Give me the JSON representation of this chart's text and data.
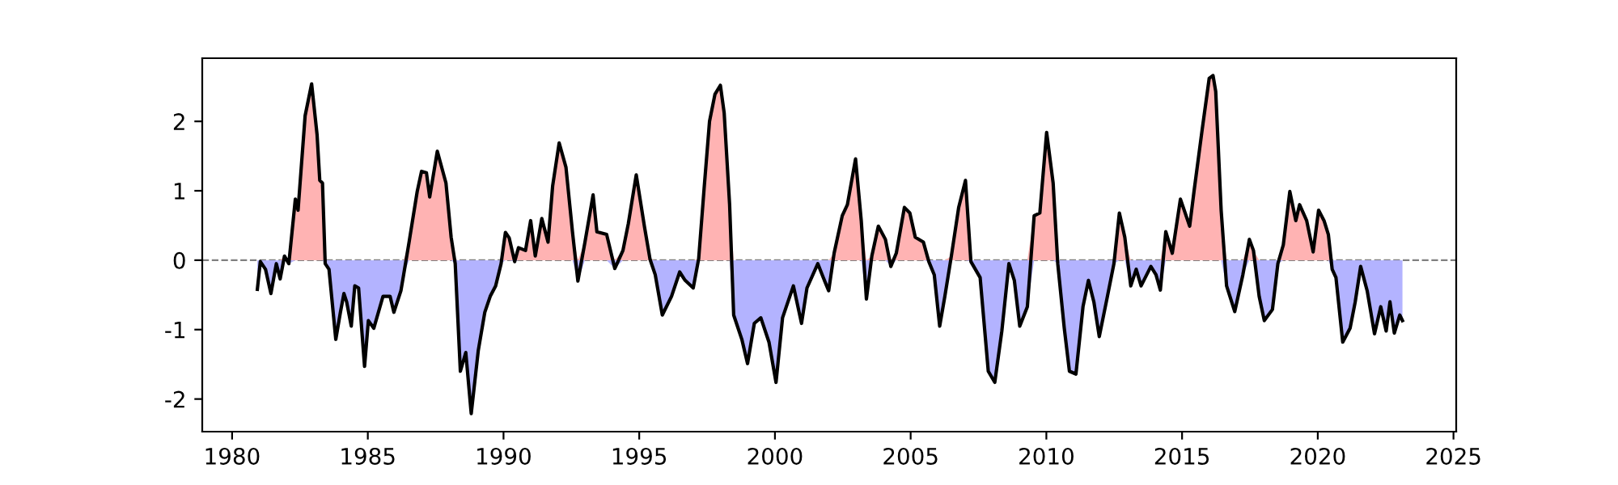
{
  "chart_data": {
    "type": "area",
    "x": [
      1980.93,
      1981.04,
      1981.23,
      1981.43,
      1981.63,
      1981.77,
      1981.93,
      1982.09,
      1982.33,
      1982.43,
      1982.69,
      1982.93,
      1983.13,
      1983.23,
      1983.33,
      1983.43,
      1983.57,
      1983.82,
      1983.99,
      1984.12,
      1984.22,
      1984.39,
      1984.52,
      1984.66,
      1984.88,
      1985.02,
      1985.22,
      1985.56,
      1985.82,
      1985.96,
      1986.22,
      1986.32,
      1986.52,
      1986.82,
      1986.98,
      1987.16,
      1987.28,
      1987.56,
      1987.88,
      1988.07,
      1988.22,
      1988.41,
      1988.61,
      1988.81,
      1989.07,
      1989.31,
      1989.51,
      1989.71,
      1989.91,
      1990.07,
      1990.21,
      1990.41,
      1990.55,
      1990.81,
      1991.0,
      1991.17,
      1991.41,
      1991.64,
      1991.81,
      1992.05,
      1992.3,
      1992.54,
      1992.74,
      1993.0,
      1993.3,
      1993.44,
      1993.8,
      1994.1,
      1994.4,
      1994.6,
      1994.89,
      1995.19,
      1995.4,
      1995.59,
      1995.85,
      1996.19,
      1996.49,
      1996.69,
      1996.99,
      1997.19,
      1997.39,
      1997.59,
      1997.79,
      1997.99,
      1998.13,
      1998.33,
      1998.48,
      1998.78,
      1998.99,
      1999.24,
      1999.48,
      1999.78,
      2000.04,
      2000.28,
      2000.68,
      2000.98,
      2001.18,
      2001.58,
      2001.78,
      2001.98,
      2002.18,
      2002.48,
      2002.67,
      2002.97,
      2003.18,
      2003.37,
      2003.57,
      2003.81,
      2004.07,
      2004.27,
      2004.47,
      2004.77,
      2004.97,
      2005.17,
      2005.47,
      2005.67,
      2005.87,
      2006.07,
      2006.26,
      2006.5,
      2006.77,
      2007.02,
      2007.22,
      2007.56,
      2007.86,
      2008.1,
      2008.36,
      2008.62,
      2008.82,
      2009.02,
      2009.3,
      2009.55,
      2009.76,
      2010.01,
      2010.25,
      2010.42,
      2010.66,
      2010.85,
      2011.09,
      2011.35,
      2011.55,
      2011.75,
      2011.95,
      2012.25,
      2012.49,
      2012.69,
      2012.89,
      2013.11,
      2013.31,
      2013.49,
      2013.85,
      2014.04,
      2014.2,
      2014.4,
      2014.64,
      2014.94,
      2015.28,
      2015.44,
      2015.74,
      2016.0,
      2016.14,
      2016.24,
      2016.44,
      2016.64,
      2016.94,
      2017.24,
      2017.48,
      2017.63,
      2017.84,
      2018.03,
      2018.33,
      2018.53,
      2018.73,
      2018.97,
      2019.19,
      2019.33,
      2019.59,
      2019.83,
      2020.03,
      2020.23,
      2020.39,
      2020.53,
      2020.67,
      2020.92,
      2021.19,
      2021.38,
      2021.58,
      2021.82,
      2022.09,
      2022.32,
      2022.52,
      2022.66,
      2022.82,
      2023.02,
      2023.12
    ],
    "series": [
      {
        "color": "#ffb3b3",
        "values": [
          0,
          0,
          0,
          0,
          0,
          0,
          0.06,
          0,
          0.88,
          0.72,
          2.08,
          2.54,
          1.81,
          1.15,
          1.11,
          0,
          0,
          0,
          0,
          0,
          0,
          0,
          0,
          0,
          0,
          0,
          0,
          0,
          0,
          0,
          0,
          0,
          0.26,
          0.99,
          1.28,
          1.26,
          0.91,
          1.57,
          1.11,
          0.33,
          0,
          0,
          0,
          0,
          0,
          0,
          0,
          0,
          0,
          0.4,
          0.32,
          0,
          0.18,
          0.14,
          0.57,
          0.06,
          0.6,
          0.26,
          1.07,
          1.69,
          1.34,
          0.41,
          0,
          0.26,
          0.94,
          0.41,
          0.37,
          0,
          0.14,
          0.53,
          1.23,
          0.49,
          0.01,
          0,
          0,
          0,
          0,
          0,
          0,
          0.02,
          1.03,
          2.0,
          2.39,
          2.52,
          2.12,
          0.8,
          0,
          0,
          0,
          0,
          0,
          0,
          0,
          0,
          0,
          0,
          0,
          0,
          0,
          0,
          0.1,
          0.64,
          0.8,
          1.46,
          0.57,
          0,
          0.06,
          0.49,
          0.3,
          0,
          0.1,
          0.76,
          0.68,
          0.33,
          0.26,
          0,
          0,
          0,
          0,
          0.06,
          0.76,
          1.15,
          0,
          0,
          0,
          0,
          0,
          0,
          0,
          0,
          0,
          0.64,
          0.68,
          1.84,
          1.11,
          0,
          0,
          0,
          0,
          0,
          0,
          0,
          0,
          0,
          0,
          0.68,
          0.33,
          0,
          0,
          0,
          0,
          0,
          0,
          0.41,
          0.1,
          0.88,
          0.49,
          0.99,
          1.88,
          2.62,
          2.66,
          2.43,
          0.72,
          0,
          0,
          0,
          0.3,
          0.14,
          0,
          0,
          0,
          0,
          0.22,
          0.99,
          0.57,
          0.8,
          0.57,
          0.12,
          0.72,
          0.57,
          0.37,
          0,
          0,
          0,
          0,
          0,
          0,
          0,
          0,
          0,
          0,
          0,
          0,
          0,
          0
        ]
      },
      {
        "color": "#b3b3ff",
        "type": "area",
        "values": [
          -0.42,
          -0.02,
          -0.13,
          -0.48,
          -0.05,
          -0.27,
          0,
          -0.05,
          0,
          0,
          0,
          0,
          0,
          0,
          0,
          -0.05,
          -0.13,
          -1.14,
          -0.75,
          -0.48,
          -0.6,
          -0.95,
          -0.37,
          -0.4,
          -1.53,
          -0.87,
          -0.98,
          -0.52,
          -0.52,
          -0.75,
          -0.44,
          -0.21,
          0,
          0,
          0,
          0,
          0,
          0,
          0,
          0,
          -0.05,
          -1.6,
          -1.33,
          -2.21,
          -1.3,
          -0.75,
          -0.52,
          -0.37,
          -0.05,
          0,
          0,
          -0.02,
          0,
          0,
          0,
          0,
          0,
          0,
          0,
          0,
          0,
          0,
          -0.3,
          0,
          0,
          0,
          0,
          -0.12,
          0,
          0,
          0,
          0,
          0,
          -0.21,
          -0.79,
          -0.52,
          -0.17,
          -0.29,
          -0.4,
          0,
          0,
          0,
          0,
          0,
          0,
          0,
          -0.79,
          -1.14,
          -1.49,
          -0.91,
          -0.83,
          -1.18,
          -1.76,
          -0.83,
          -0.37,
          -0.91,
          -0.4,
          -0.05,
          -0.25,
          -0.44,
          0,
          0,
          0,
          0,
          0,
          -0.56,
          0,
          0,
          0,
          -0.09,
          0,
          0,
          0,
          0,
          0,
          -0.02,
          -0.21,
          -0.95,
          -0.52,
          0,
          0,
          0,
          -0.02,
          -0.25,
          -1.6,
          -1.76,
          -1.02,
          -0.05,
          -0.29,
          -0.95,
          -0.67,
          0,
          0,
          0,
          0,
          -0.05,
          -0.98,
          -1.6,
          -1.64,
          -0.67,
          -0.29,
          -0.6,
          -1.1,
          -0.52,
          -0.05,
          0,
          0,
          -0.37,
          -0.13,
          -0.37,
          -0.09,
          -0.21,
          -0.43,
          0,
          0,
          0,
          0,
          0,
          0,
          0,
          0,
          0,
          0,
          -0.37,
          -0.74,
          -0.21,
          0,
          0,
          -0.52,
          -0.87,
          -0.71,
          -0.05,
          0,
          0,
          0,
          0,
          0,
          0,
          0,
          0,
          0,
          -0.13,
          -0.25,
          -1.18,
          -0.98,
          -0.6,
          -0.09,
          -0.44,
          -1.06,
          -0.67,
          -1.02,
          -0.6,
          -1.05,
          -0.79,
          -0.87
        ]
      },
      {
        "color": "#000000",
        "type": "line",
        "values": [
          -0.42,
          -0.02,
          -0.13,
          -0.48,
          -0.05,
          -0.27,
          0.06,
          -0.05,
          0.88,
          0.72,
          2.08,
          2.54,
          1.81,
          1.15,
          1.11,
          -0.05,
          -0.13,
          -1.14,
          -0.75,
          -0.48,
          -0.6,
          -0.95,
          -0.37,
          -0.4,
          -1.53,
          -0.87,
          -0.98,
          -0.52,
          -0.52,
          -0.75,
          -0.44,
          -0.21,
          0.26,
          0.99,
          1.28,
          1.26,
          0.91,
          1.57,
          1.11,
          0.33,
          -0.05,
          -1.6,
          -1.33,
          -2.21,
          -1.3,
          -0.75,
          -0.52,
          -0.37,
          -0.05,
          0.4,
          0.32,
          -0.02,
          0.18,
          0.14,
          0.57,
          0.06,
          0.6,
          0.26,
          1.07,
          1.69,
          1.34,
          0.41,
          -0.3,
          0.26,
          0.94,
          0.41,
          0.37,
          -0.12,
          0.14,
          0.53,
          1.23,
          0.49,
          0.01,
          -0.21,
          -0.79,
          -0.52,
          -0.17,
          -0.29,
          -0.4,
          0.02,
          1.03,
          2.0,
          2.39,
          2.52,
          2.12,
          0.8,
          -0.79,
          -1.14,
          -1.49,
          -0.91,
          -0.83,
          -1.18,
          -1.76,
          -0.83,
          -0.37,
          -0.91,
          -0.4,
          -0.05,
          -0.25,
          -0.44,
          0.1,
          0.64,
          0.8,
          1.46,
          0.57,
          -0.56,
          0.06,
          0.49,
          0.3,
          -0.09,
          0.1,
          0.76,
          0.68,
          0.33,
          0.26,
          -0.02,
          -0.21,
          -0.95,
          -0.52,
          0.06,
          0.76,
          1.15,
          -0.02,
          -0.25,
          -1.6,
          -1.76,
          -1.02,
          -0.05,
          -0.29,
          -0.95,
          -0.67,
          0.64,
          0.68,
          1.84,
          1.11,
          -0.05,
          -0.98,
          -1.6,
          -1.64,
          -0.67,
          -0.29,
          -0.6,
          -1.1,
          -0.52,
          -0.05,
          0.68,
          0.33,
          -0.37,
          -0.13,
          -0.37,
          -0.09,
          -0.21,
          -0.43,
          0.41,
          0.1,
          0.88,
          0.49,
          0.99,
          1.88,
          2.62,
          2.66,
          2.43,
          0.72,
          -0.37,
          -0.74,
          -0.21,
          0.3,
          0.14,
          -0.52,
          -0.87,
          -0.71,
          -0.05,
          0.22,
          0.99,
          0.57,
          0.8,
          0.57,
          0.12,
          0.72,
          0.57,
          0.37,
          -0.13,
          -0.25,
          -1.18,
          -0.98,
          -0.6,
          -0.09,
          -0.44,
          -1.06,
          -0.67,
          -1.02,
          -0.6,
          -1.05,
          -0.79,
          -0.87
        ]
      }
    ],
    "xlim": [
      1978.9,
      2025.1
    ],
    "ylim": [
      -2.47,
      2.91
    ],
    "xticks": [
      1980,
      1985,
      1990,
      1995,
      2000,
      2005,
      2010,
      2015,
      2020,
      2025
    ],
    "yticks": [
      -2,
      -1,
      0,
      1,
      2
    ],
    "ref_lines": [
      {
        "axis": "y",
        "value": 0,
        "color": "#808080",
        "line_style": "dashed"
      }
    ],
    "grid": false
  }
}
